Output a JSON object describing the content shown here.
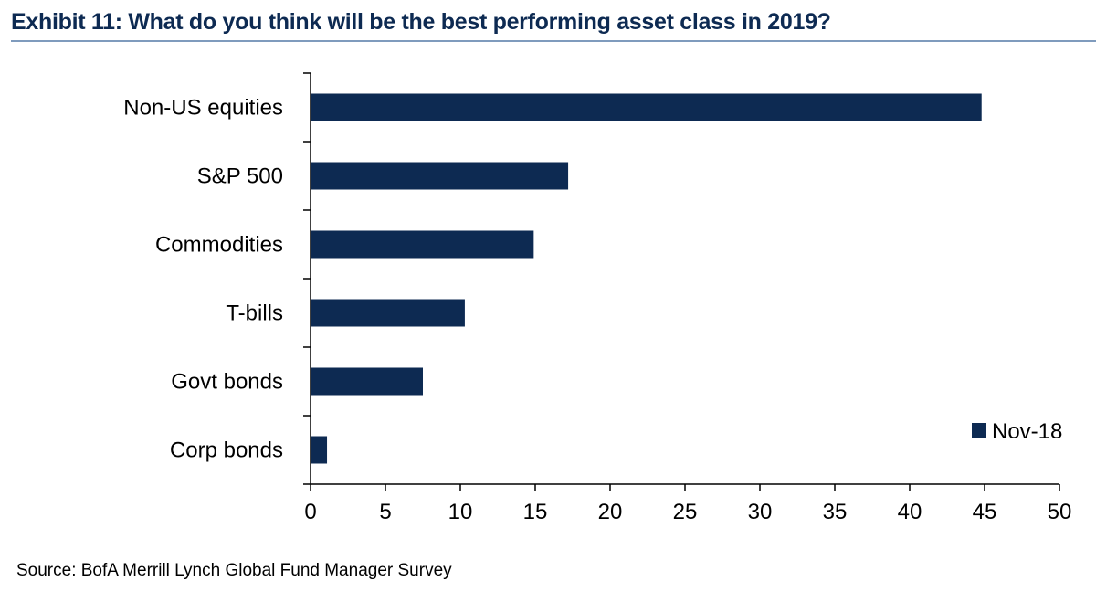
{
  "header": {
    "title": "Exhibit 11: What do you think will be the best performing asset class in 2019?"
  },
  "footer": {
    "source": "Source: BofA Merrill Lynch Global Fund Manager Survey"
  },
  "chart_data": {
    "type": "bar",
    "orientation": "horizontal",
    "categories": [
      "Non-US equities",
      "S&P 500",
      "Commodities",
      "T-bills",
      "Govt bonds",
      "Corp bonds"
    ],
    "series": [
      {
        "name": "Nov-18",
        "values": [
          44.8,
          17.2,
          14.9,
          10.3,
          7.5,
          1.1
        ],
        "color": "#0d2a52"
      }
    ],
    "xlim": [
      0,
      50
    ],
    "xticks": [
      "0",
      "5",
      "10",
      "15",
      "20",
      "25",
      "30",
      "35",
      "40",
      "45",
      "50"
    ],
    "grid": false,
    "legend_position": "bottom-right"
  }
}
